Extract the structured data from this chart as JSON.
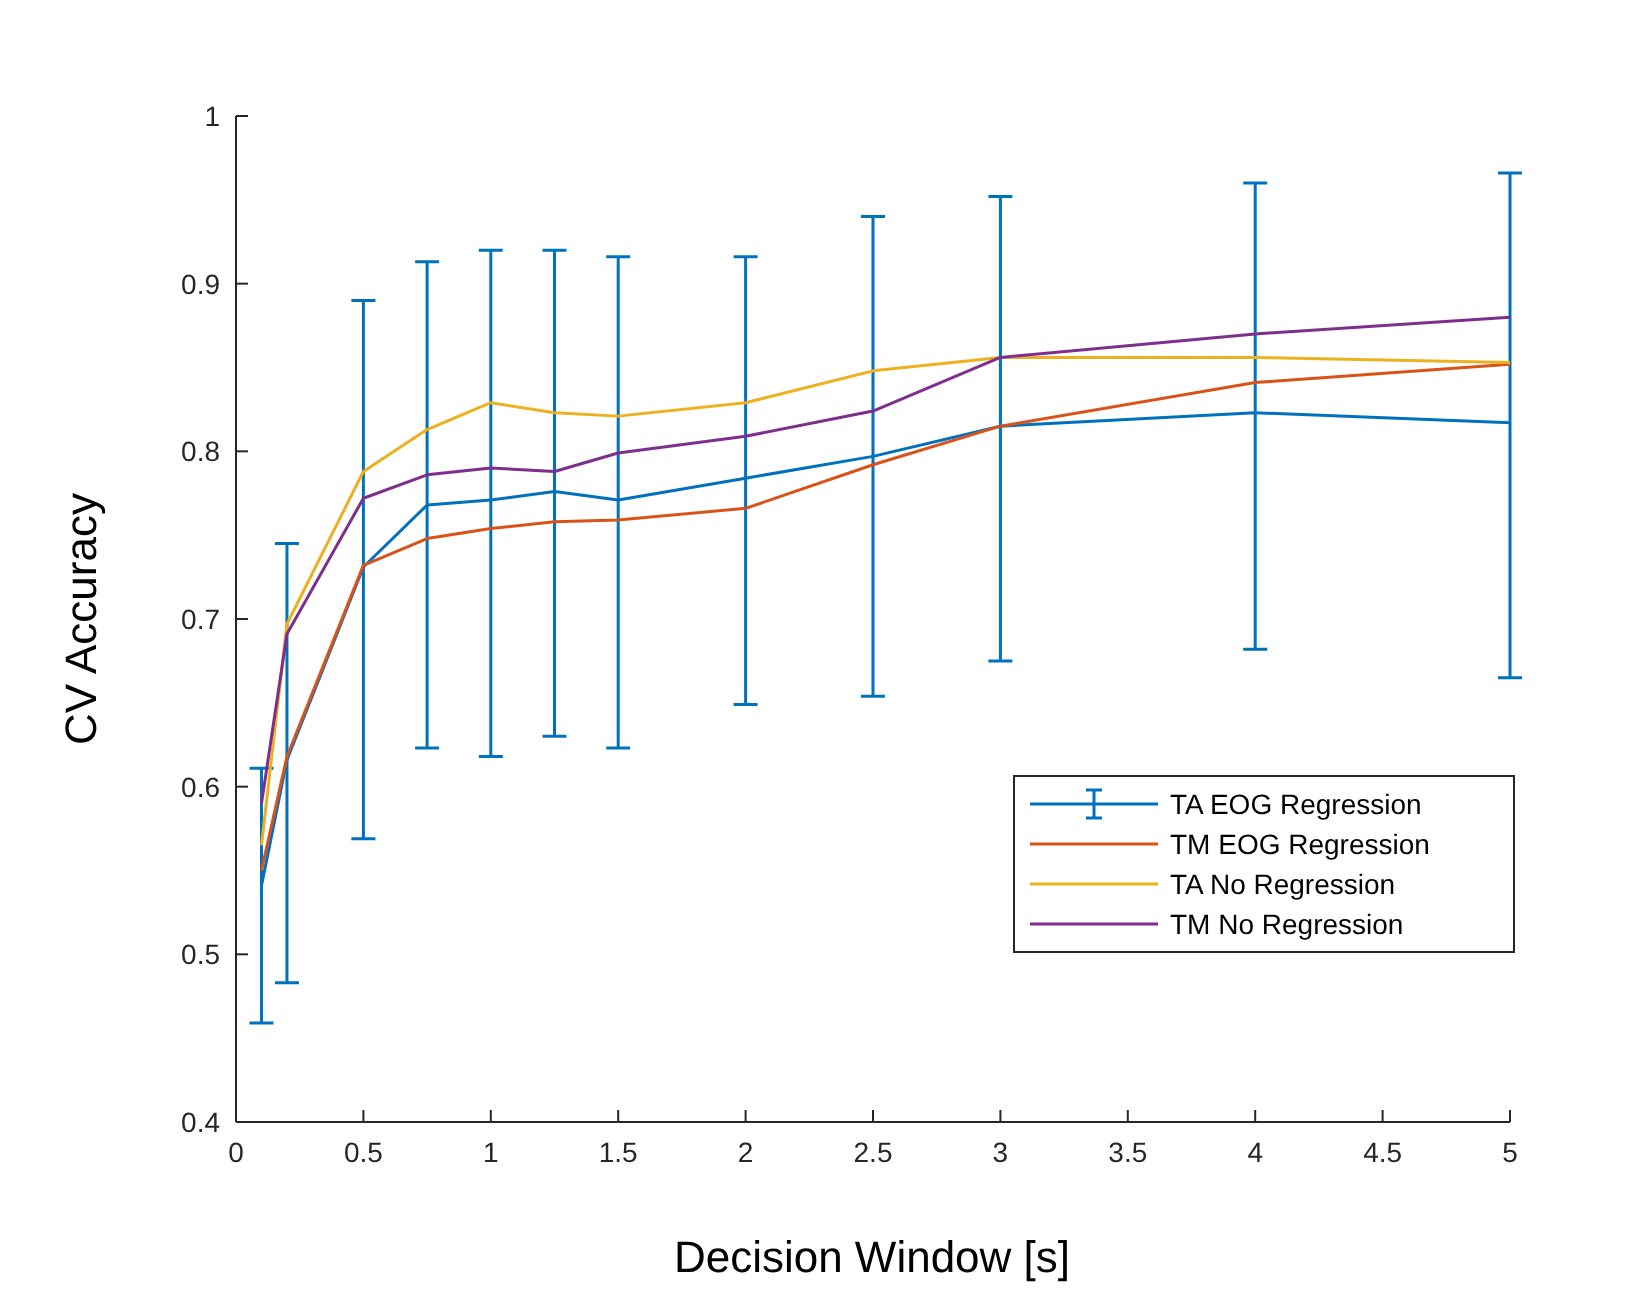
{
  "chart_data": {
    "type": "line",
    "xlabel": "Decision Window [s]",
    "ylabel": "CV Accuracy",
    "x": [
      0.1,
      0.2,
      0.5,
      0.75,
      1,
      1.25,
      1.5,
      2,
      2.5,
      3,
      4,
      5
    ],
    "series": [
      {
        "name": "TA EOG Regression",
        "color": "#0072bd",
        "values": [
          0.541,
          0.616,
          0.731,
          0.768,
          0.771,
          0.776,
          0.771,
          0.784,
          0.797,
          0.815,
          0.823,
          0.817
        ],
        "errors": [
          [
            0.459,
            0.611
          ],
          [
            0.483,
            0.745
          ],
          [
            0.569,
            0.89
          ],
          [
            0.623,
            0.913
          ],
          [
            0.618,
            0.92
          ],
          [
            0.63,
            0.92
          ],
          [
            0.623,
            0.916
          ],
          [
            0.649,
            0.916
          ],
          [
            0.654,
            0.94
          ],
          [
            0.675,
            0.952
          ],
          [
            0.682,
            0.96
          ],
          [
            0.665,
            0.966
          ]
        ]
      },
      {
        "name": "TM EOG Regression",
        "color": "#d95319",
        "values": [
          0.55,
          0.618,
          0.732,
          0.748,
          0.754,
          0.758,
          0.759,
          0.766,
          0.792,
          0.815,
          0.841,
          0.852
        ]
      },
      {
        "name": "TA No Regression",
        "color": "#edb120",
        "values": [
          0.565,
          0.697,
          0.788,
          0.813,
          0.829,
          0.823,
          0.821,
          0.829,
          0.848,
          0.856,
          0.856,
          0.853
        ]
      },
      {
        "name": "TM No Regression",
        "color": "#7e2f8e",
        "values": [
          0.59,
          0.691,
          0.772,
          0.786,
          0.79,
          0.788,
          0.799,
          0.809,
          0.824,
          0.856,
          0.87,
          0.88
        ]
      }
    ],
    "xlim": [
      0,
      5
    ],
    "xticks": [
      0,
      0.5,
      1,
      1.5,
      2,
      2.5,
      3,
      3.5,
      4,
      4.5,
      5
    ],
    "ylim": [
      0.4,
      1
    ],
    "yticks": [
      0.4,
      0.5,
      0.6,
      0.7,
      0.8,
      0.9,
      1
    ],
    "grid": false,
    "legend": "right",
    "marker": "none",
    "line_style": "solid"
  }
}
